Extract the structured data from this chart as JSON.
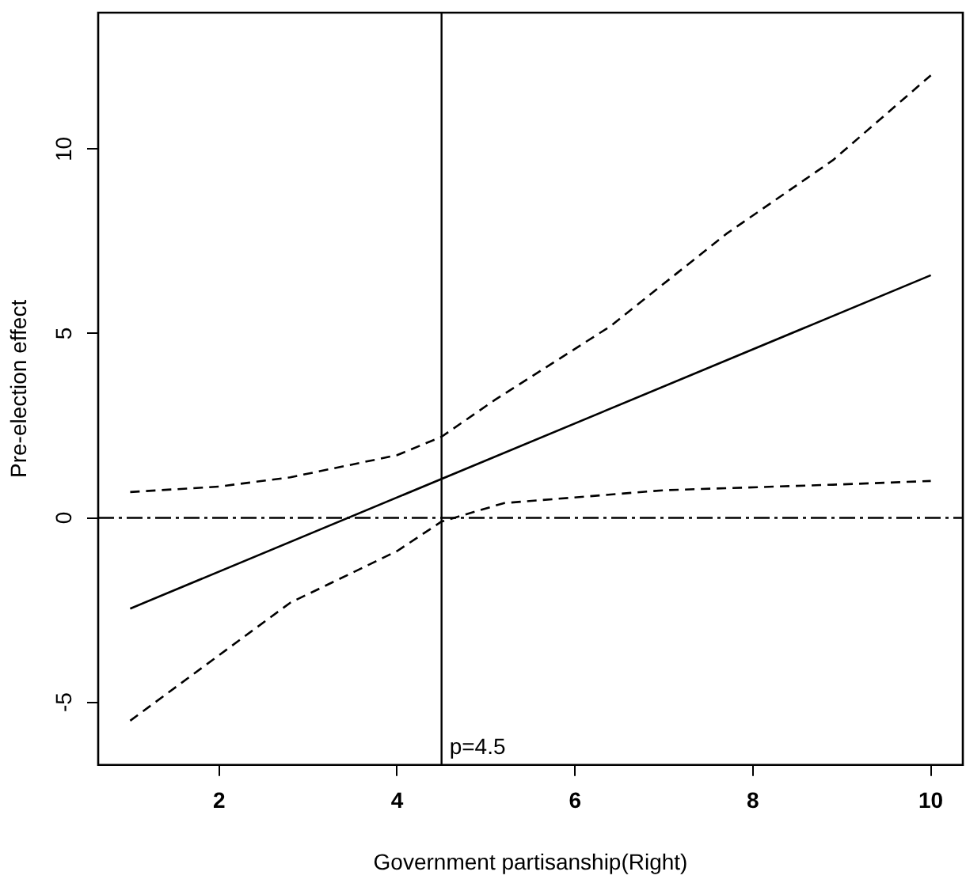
{
  "chart_data": {
    "type": "line",
    "xlabel": "Government partisanship(Right)",
    "ylabel": "Pre-election effect",
    "xlim": [
      0.64,
      10.36
    ],
    "xticks": [
      2,
      4,
      6,
      8,
      10
    ],
    "ylim": [
      -6.7,
      13.7
    ],
    "yticks": [
      -5,
      0,
      5,
      10
    ],
    "grid": false,
    "legend": false,
    "marker": "none",
    "series": [
      {
        "color": "#000000",
        "line_style": "solid",
        "x": [
          1,
          10
        ],
        "values": [
          -2.46,
          6.58
        ]
      },
      {
        "color": "#000000",
        "line_style": "dashed",
        "x": [
          1,
          2,
          2.8,
          4,
          4.5,
          5.1,
          6.4,
          7.7,
          8.9,
          10
        ],
        "values": [
          0.7,
          0.85,
          1.1,
          1.7,
          2.2,
          3.2,
          5.2,
          7.7,
          9.7,
          12.0
        ]
      },
      {
        "color": "#000000",
        "line_style": "dashed",
        "x": [
          1,
          2.8,
          4,
          4.5,
          5.2,
          7.0,
          8.9,
          10
        ],
        "values": [
          -5.5,
          -2.3,
          -0.9,
          -0.1,
          0.4,
          0.75,
          0.9,
          1.0
        ]
      }
    ],
    "ref_lines": [
      {
        "axis": "y",
        "value": 0,
        "color": "#000000",
        "line_style": "dashed"
      },
      {
        "axis": "x",
        "value": 4.5,
        "label": "p=4.5",
        "color": "#000000",
        "line_style": "solid"
      }
    ]
  }
}
